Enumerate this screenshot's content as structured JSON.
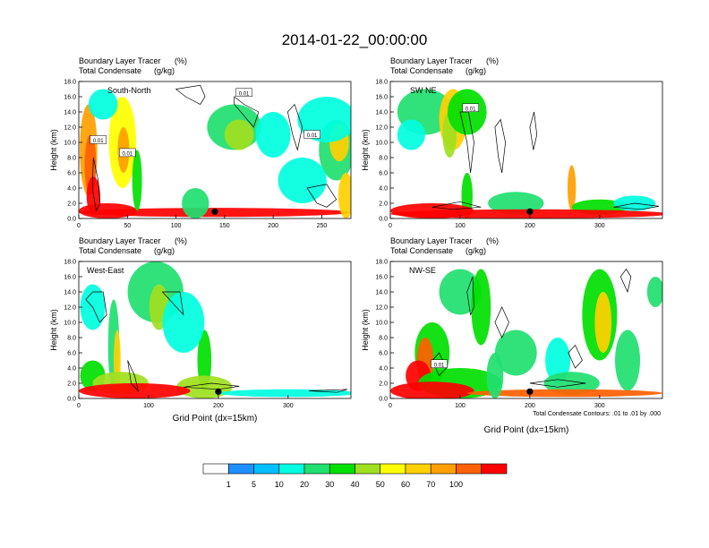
{
  "main_title": "2014-01-22_00:00:00",
  "colors": {
    "levels": [
      "#ffffff",
      "#1e90ff",
      "#00bfff",
      "#00ffe0",
      "#20e070",
      "#00e000",
      "#a0e020",
      "#ffff00",
      "#ffd000",
      "#ffa000",
      "#ff6000",
      "#ff0000"
    ],
    "contour": "#000000"
  },
  "chart_data": [
    {
      "type": "heatmap",
      "panel_label": "South-North",
      "left_title_1": "Boundary Layer Tracer",
      "right_title_1": "(%)",
      "left_title_2": "Total Condensate",
      "right_title_2": "(g/kg)",
      "ylabel": "Height (km)",
      "xlabel": "",
      "xlim": [
        0,
        280
      ],
      "ylim": [
        0,
        18
      ],
      "xticks": [
        "0",
        "50",
        "100",
        "150",
        "200",
        "250"
      ],
      "yticks": [
        "0.0",
        "2.0",
        "4.0",
        "6.0",
        "8.0",
        "10.0",
        "12.0",
        "14.0",
        "16.0",
        "18.0"
      ],
      "contour_labels": [
        "0.01",
        "0.01",
        "0.01",
        "0.01"
      ],
      "marker_x": 140
    },
    {
      "type": "heatmap",
      "panel_label": "SW NE",
      "left_title_1": "Boundary Layer Tracer",
      "right_title_1": "(%)",
      "left_title_2": "Total Condensate",
      "right_title_2": "(g/kg)",
      "ylabel": "Height (km)",
      "xlabel": "",
      "xlim": [
        0,
        390
      ],
      "ylim": [
        0,
        18
      ],
      "xticks": [
        "0",
        "100",
        "200",
        "300"
      ],
      "yticks": [
        "0.0",
        "2.0",
        "4.0",
        "6.0",
        "8.0",
        "10.0",
        "12.0",
        "14.0",
        "16.0",
        "18.0"
      ],
      "contour_labels": [
        "0.01"
      ],
      "marker_x": 200
    },
    {
      "type": "heatmap",
      "panel_label": "West-East",
      "left_title_1": "Boundary Layer Tracer",
      "right_title_1": "(%)",
      "left_title_2": "Total Condensate",
      "right_title_2": "(g/kg)",
      "ylabel": "Height (km)",
      "xlabel": "Grid Point (dx=15km)",
      "xlim": [
        0,
        390
      ],
      "ylim": [
        0,
        18
      ],
      "xticks": [
        "0",
        "100",
        "200",
        "300"
      ],
      "yticks": [
        "0.0",
        "2.0",
        "4.0",
        "6.0",
        "8.0",
        "10.0",
        "12.0",
        "14.0",
        "16.0",
        "18.0"
      ],
      "contour_labels": [],
      "marker_x": 200
    },
    {
      "type": "heatmap",
      "panel_label": "NW-SE",
      "left_title_1": "Boundary Layer Tracer",
      "right_title_1": "(%)",
      "left_title_2": "Total Condensate",
      "right_title_2": "(g/kg)",
      "ylabel": "Height (km)",
      "xlabel": "Grid Point (dx=15km)",
      "xlim": [
        0,
        390
      ],
      "ylim": [
        0,
        18
      ],
      "xticks": [
        "0",
        "100",
        "200",
        "300"
      ],
      "yticks": [
        "0.0",
        "2.0",
        "4.0",
        "6.0",
        "8.0",
        "10.0",
        "12.0",
        "14.0",
        "16.0",
        "18.0"
      ],
      "contour_labels": [
        "0.01"
      ],
      "marker_x": 200
    }
  ],
  "contour_note": "Total Condensate Contours: .01 to .01 by .000",
  "colorbar": {
    "labels": [
      "1",
      "5",
      "10",
      "20",
      "30",
      "40",
      "50",
      "60",
      "70",
      "100"
    ]
  }
}
